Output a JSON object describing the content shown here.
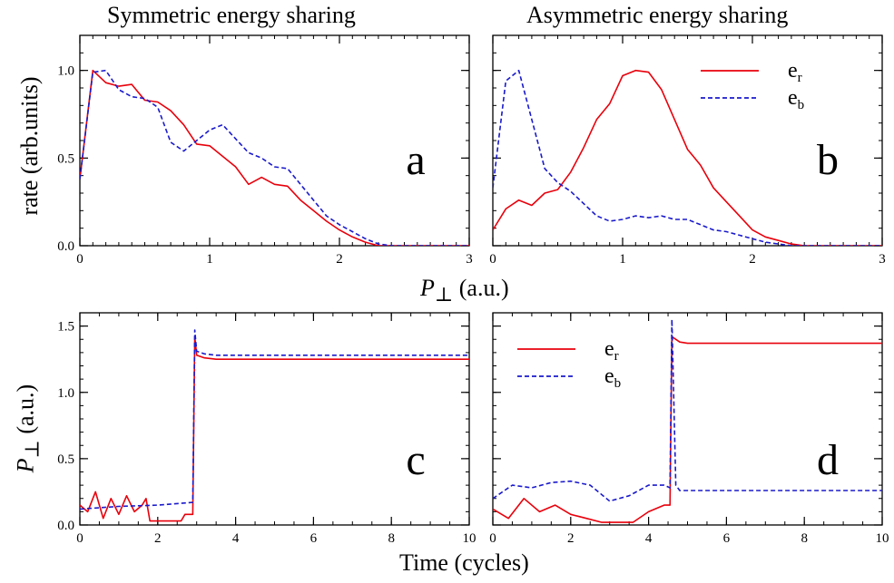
{
  "figure": {
    "titles": {
      "a": "Symmetric energy sharing",
      "b": "Asymmetric energy sharing"
    },
    "xlabel_top": {
      "sym": "P",
      "sub": "⊥",
      "unit": "(a.u.)"
    },
    "xlabel_bottom": "Time (cycles)",
    "ylabel_top": "rate (arb.units)",
    "ylabel_bottom": {
      "sym": "P",
      "sub": "⊥",
      "unit": "(a.u.)"
    },
    "colors": {
      "red": "#e8000b",
      "blue": "#1a1acc"
    }
  },
  "chart_data": [
    {
      "id": "a",
      "type": "line",
      "panel_letter": "a",
      "xlim": [
        0,
        3
      ],
      "ylim": [
        0,
        1.2
      ],
      "xticks": [
        0,
        1,
        2,
        3
      ],
      "yticks": [
        0.0,
        0.5,
        1.0
      ],
      "xticklabels": [
        "0",
        "1",
        "2",
        "3"
      ],
      "yticklabels": [
        "0.0",
        "0.5",
        "1.0"
      ],
      "legend": null,
      "series": [
        {
          "color": "red",
          "dash": "solid",
          "x": [
            0,
            0.1,
            0.2,
            0.3,
            0.4,
            0.5,
            0.6,
            0.7,
            0.8,
            0.9,
            1.0,
            1.1,
            1.2,
            1.3,
            1.4,
            1.5,
            1.6,
            1.7,
            1.8,
            1.9,
            2.0,
            2.1,
            2.2,
            2.3,
            2.4,
            2.5,
            3.0
          ],
          "y": [
            0.38,
            1.0,
            0.93,
            0.91,
            0.92,
            0.83,
            0.82,
            0.77,
            0.69,
            0.58,
            0.57,
            0.51,
            0.45,
            0.35,
            0.39,
            0.35,
            0.34,
            0.26,
            0.2,
            0.14,
            0.09,
            0.05,
            0.02,
            0.0,
            0.0,
            0.0,
            0.0
          ]
        },
        {
          "color": "blue",
          "dash": "dashed",
          "x": [
            0,
            0.1,
            0.2,
            0.3,
            0.4,
            0.5,
            0.6,
            0.7,
            0.8,
            0.9,
            1.0,
            1.1,
            1.2,
            1.3,
            1.4,
            1.5,
            1.6,
            1.7,
            1.8,
            1.9,
            2.0,
            2.1,
            2.2,
            2.3,
            2.4,
            2.5,
            3.0
          ],
          "y": [
            0.38,
            0.99,
            1.0,
            0.89,
            0.85,
            0.84,
            0.79,
            0.59,
            0.54,
            0.6,
            0.66,
            0.69,
            0.61,
            0.53,
            0.5,
            0.45,
            0.44,
            0.35,
            0.26,
            0.17,
            0.12,
            0.08,
            0.04,
            0.01,
            0.0,
            0.0,
            0.0
          ]
        }
      ]
    },
    {
      "id": "b",
      "type": "line",
      "panel_letter": "b",
      "xlim": [
        0,
        3
      ],
      "ylim": [
        0,
        1.2
      ],
      "xticks": [
        0,
        1,
        2,
        3
      ],
      "yticks": [
        0.0,
        0.5,
        1.0
      ],
      "xticklabels": [
        "0",
        "1",
        "2",
        "3"
      ],
      "yticklabels": [
        "",
        "",
        ""
      ],
      "legend": {
        "position": "top-right",
        "entries": [
          {
            "base": "e",
            "sub": "r",
            "color": "red",
            "dash": "solid"
          },
          {
            "base": "e",
            "sub": "b",
            "color": "blue",
            "dash": "dashed"
          }
        ]
      },
      "series": [
        {
          "color": "red",
          "dash": "solid",
          "x": [
            0,
            0.1,
            0.2,
            0.3,
            0.4,
            0.5,
            0.6,
            0.7,
            0.8,
            0.9,
            1.0,
            1.1,
            1.2,
            1.3,
            1.4,
            1.5,
            1.6,
            1.7,
            1.8,
            1.9,
            2.0,
            2.1,
            2.2,
            2.3,
            2.4,
            2.5,
            3.0
          ],
          "y": [
            0.09,
            0.21,
            0.26,
            0.23,
            0.3,
            0.32,
            0.42,
            0.56,
            0.72,
            0.81,
            0.97,
            1.0,
            0.99,
            0.89,
            0.72,
            0.55,
            0.46,
            0.33,
            0.25,
            0.17,
            0.09,
            0.05,
            0.03,
            0.01,
            0.0,
            0.0,
            0.0
          ]
        },
        {
          "color": "blue",
          "dash": "dashed",
          "x": [
            0,
            0.1,
            0.2,
            0.3,
            0.4,
            0.5,
            0.6,
            0.7,
            0.8,
            0.9,
            1.0,
            1.1,
            1.2,
            1.3,
            1.4,
            1.5,
            1.6,
            1.7,
            1.8,
            1.9,
            2.0,
            2.1,
            2.2,
            2.3,
            2.4,
            2.5,
            3.0
          ],
          "y": [
            0.33,
            0.94,
            1.0,
            0.72,
            0.44,
            0.36,
            0.31,
            0.24,
            0.17,
            0.14,
            0.15,
            0.17,
            0.16,
            0.17,
            0.15,
            0.15,
            0.12,
            0.09,
            0.08,
            0.06,
            0.04,
            0.02,
            0.01,
            0.0,
            0.0,
            0.0,
            0.0
          ]
        }
      ]
    },
    {
      "id": "c",
      "type": "line",
      "panel_letter": "c",
      "xlim": [
        0,
        10
      ],
      "ylim": [
        0,
        1.6
      ],
      "xticks": [
        0,
        2,
        4,
        6,
        8,
        10
      ],
      "yticks": [
        0.0,
        0.5,
        1.0,
        1.5
      ],
      "xticklabels": [
        "0",
        "2",
        "4",
        "6",
        "8",
        "10"
      ],
      "yticklabels": [
        "0.0",
        "0.5",
        "1.0",
        "1.5"
      ],
      "legend": null,
      "series": [
        {
          "color": "red",
          "dash": "solid",
          "x": [
            0,
            0.2,
            0.4,
            0.6,
            0.8,
            1.0,
            1.2,
            1.4,
            1.6,
            1.7,
            1.8,
            2.0,
            2.4,
            2.6,
            2.7,
            2.8,
            2.9,
            2.95,
            3.0,
            3.2,
            3.5,
            4.0,
            6.0,
            8.0,
            10.0
          ],
          "y": [
            0.15,
            0.1,
            0.25,
            0.05,
            0.2,
            0.08,
            0.22,
            0.1,
            0.15,
            0.2,
            0.03,
            0.03,
            0.03,
            0.03,
            0.08,
            0.08,
            0.08,
            1.42,
            1.28,
            1.26,
            1.25,
            1.25,
            1.25,
            1.25,
            1.25
          ]
        },
        {
          "color": "blue",
          "dash": "dashed",
          "x": [
            0,
            1.0,
            2.0,
            2.9,
            2.95,
            3.0,
            3.2,
            3.5,
            4.0,
            6.0,
            8.0,
            10.0
          ],
          "y": [
            0.12,
            0.14,
            0.15,
            0.17,
            1.47,
            1.31,
            1.29,
            1.28,
            1.28,
            1.28,
            1.28,
            1.28
          ]
        }
      ]
    },
    {
      "id": "d",
      "type": "line",
      "panel_letter": "d",
      "xlim": [
        0,
        10
      ],
      "ylim": [
        0,
        1.6
      ],
      "xticks": [
        0,
        2,
        4,
        6,
        8,
        10
      ],
      "yticks": [
        0.0,
        0.5,
        1.0,
        1.5
      ],
      "xticklabels": [
        "0",
        "2",
        "4",
        "6",
        "8",
        "10"
      ],
      "yticklabels": [
        "",
        "",
        "",
        ""
      ],
      "legend": {
        "position": "top-left",
        "entries": [
          {
            "base": "e",
            "sub": "r",
            "color": "red",
            "dash": "solid"
          },
          {
            "base": "e",
            "sub": "b",
            "color": "blue",
            "dash": "dashed"
          }
        ]
      },
      "series": [
        {
          "color": "red",
          "dash": "solid",
          "x": [
            0,
            0.4,
            0.8,
            1.2,
            1.6,
            2.0,
            2.4,
            2.8,
            3.2,
            3.6,
            4.0,
            4.4,
            4.55,
            4.6,
            4.8,
            5.0,
            6.0,
            8.0,
            10.0
          ],
          "y": [
            0.12,
            0.05,
            0.2,
            0.1,
            0.15,
            0.08,
            0.05,
            0.02,
            0.02,
            0.02,
            0.1,
            0.15,
            0.15,
            1.42,
            1.38,
            1.37,
            1.37,
            1.37,
            1.37
          ]
        },
        {
          "color": "blue",
          "dash": "dashed",
          "x": [
            0,
            0.5,
            1.0,
            1.5,
            2.0,
            2.5,
            3.0,
            3.5,
            4.0,
            4.4,
            4.55,
            4.6,
            4.7,
            4.8,
            5.0,
            6.0,
            8.0,
            10.0
          ],
          "y": [
            0.2,
            0.3,
            0.28,
            0.32,
            0.33,
            0.3,
            0.18,
            0.22,
            0.3,
            0.3,
            0.28,
            1.55,
            0.3,
            0.26,
            0.26,
            0.26,
            0.26,
            0.26
          ]
        }
      ]
    }
  ]
}
